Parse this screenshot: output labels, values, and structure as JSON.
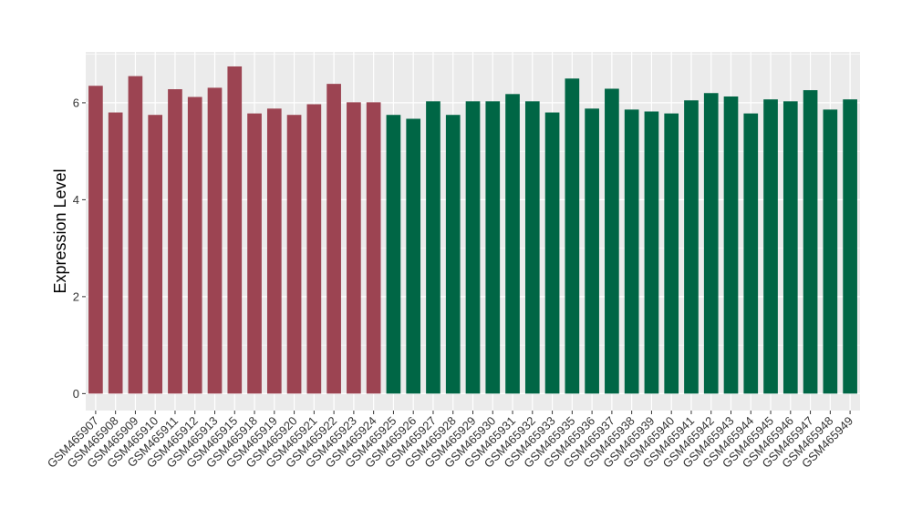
{
  "chart_data": {
    "type": "bar",
    "ylabel": "Expression Level",
    "xlabel": "",
    "ylim": [
      -0.35,
      7.05
    ],
    "y_ticks": [
      0,
      2,
      4,
      6
    ],
    "y_tick_labels": [
      "0",
      "2",
      "4",
      "6"
    ],
    "grid": true,
    "legend": "none",
    "colors": {
      "group_a": "#9c4452",
      "group_b": "#006645",
      "panel_bg": "#ebebeb",
      "grid_line": "#ffffff"
    },
    "categories": [
      "GSM465907",
      "GSM465908",
      "GSM465909",
      "GSM465910",
      "GSM465911",
      "GSM465912",
      "GSM465913",
      "GSM465915",
      "GSM465918",
      "GSM465919",
      "GSM465920",
      "GSM465921",
      "GSM465922",
      "GSM465923",
      "GSM465924",
      "GSM465925",
      "GSM465926",
      "GSM465927",
      "GSM465928",
      "GSM465929",
      "GSM465930",
      "GSM465931",
      "GSM465932",
      "GSM465933",
      "GSM465935",
      "GSM465936",
      "GSM465937",
      "GSM465938",
      "GSM465939",
      "GSM465940",
      "GSM465941",
      "GSM465942",
      "GSM465943",
      "GSM465944",
      "GSM465945",
      "GSM465946",
      "GSM465947",
      "GSM465948",
      "GSM465949"
    ],
    "values": [
      6.35,
      5.8,
      6.55,
      5.75,
      6.28,
      6.12,
      6.31,
      6.75,
      5.78,
      5.88,
      5.75,
      5.97,
      6.39,
      6.01,
      6.01,
      5.75,
      5.67,
      6.03,
      5.75,
      6.03,
      6.03,
      6.18,
      6.03,
      5.8,
      6.5,
      5.88,
      6.29,
      5.86,
      5.82,
      5.78,
      6.05,
      6.2,
      6.13,
      5.78,
      6.07,
      6.03,
      6.26,
      5.86,
      6.07
    ],
    "groups": [
      "a",
      "a",
      "a",
      "a",
      "a",
      "a",
      "a",
      "a",
      "a",
      "a",
      "a",
      "a",
      "a",
      "a",
      "a",
      "b",
      "b",
      "b",
      "b",
      "b",
      "b",
      "b",
      "b",
      "b",
      "b",
      "b",
      "b",
      "b",
      "b",
      "b",
      "b",
      "b",
      "b",
      "b",
      "b",
      "b",
      "b",
      "b",
      "b"
    ]
  }
}
